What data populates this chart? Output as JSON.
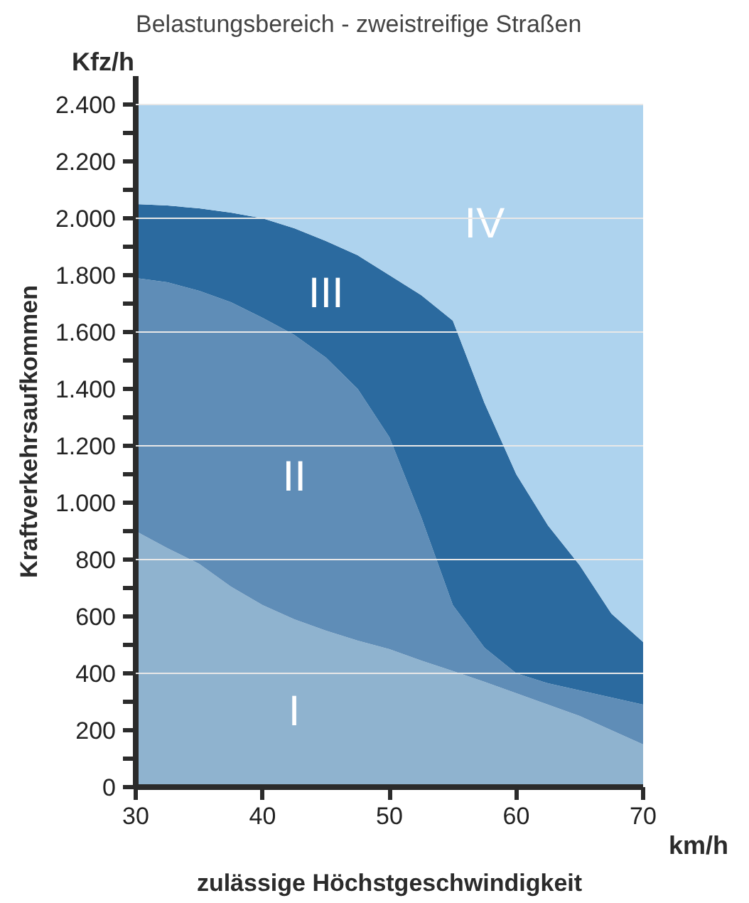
{
  "chart_data": {
    "type": "area",
    "stacked": true,
    "title": "Belastungsbereich - zweistreifige Straßen",
    "xlabel": "zulässige Höchstgeschwindigkeit",
    "ylabel": "Kraftverkehrsaufkommen",
    "annotations": [
      "Kfz/h",
      "km/h"
    ],
    "x": [
      30,
      32.5,
      35,
      37.5,
      40,
      42.5,
      45,
      47.5,
      50,
      52.5,
      55,
      57.5,
      60,
      62.5,
      65,
      67.5,
      70
    ],
    "series": [
      {
        "name": "I",
        "color": "#8fb3cf",
        "values": [
          900,
          840,
          785,
          705,
          640,
          590,
          550,
          515,
          485,
          445,
          408,
          370,
          330,
          290,
          250,
          200,
          150
        ]
      },
      {
        "name": "II",
        "color": "#5f8db7",
        "values": [
          890,
          935,
          960,
          1000,
          1010,
          1000,
          960,
          885,
          745,
          505,
          232,
          120,
          70,
          75,
          90,
          115,
          140
        ]
      },
      {
        "name": "III",
        "color": "#2b6a9f",
        "values": [
          260,
          270,
          290,
          315,
          350,
          375,
          410,
          470,
          570,
          780,
          1000,
          860,
          700,
          555,
          440,
          295,
          220
        ]
      },
      {
        "name": "IV",
        "color": "#aed3ee",
        "values": [
          350,
          355,
          365,
          380,
          400,
          435,
          480,
          530,
          600,
          670,
          760,
          1050,
          1300,
          1480,
          1620,
          1790,
          1890
        ]
      }
    ],
    "xlim": [
      30,
      70
    ],
    "ylim": [
      0,
      2500
    ],
    "xticks": [
      30,
      40,
      50,
      60,
      70
    ],
    "yticks": [
      {
        "value": 0,
        "label": "0"
      },
      {
        "value": 100,
        "label": null
      },
      {
        "value": 200,
        "label": "200"
      },
      {
        "value": 300,
        "label": null
      },
      {
        "value": 400,
        "label": "400"
      },
      {
        "value": 500,
        "label": null
      },
      {
        "value": 600,
        "label": "600"
      },
      {
        "value": 700,
        "label": null
      },
      {
        "value": 800,
        "label": "800"
      },
      {
        "value": 900,
        "label": null
      },
      {
        "value": 1000,
        "label": "1.000"
      },
      {
        "value": 1100,
        "label": null
      },
      {
        "value": 1200,
        "label": "1.200"
      },
      {
        "value": 1300,
        "label": null
      },
      {
        "value": 1400,
        "label": "1.400"
      },
      {
        "value": 1500,
        "label": null
      },
      {
        "value": 1600,
        "label": "1.600"
      },
      {
        "value": 1700,
        "label": null
      },
      {
        "value": 1800,
        "label": "1.800"
      },
      {
        "value": 1900,
        "label": null
      },
      {
        "value": 2000,
        "label": "2.000"
      },
      {
        "value": 2100,
        "label": null
      },
      {
        "value": 2200,
        "label": "2.200"
      },
      {
        "value": 2300,
        "label": null
      },
      {
        "value": 2400,
        "label": "2.400"
      }
    ],
    "ref_lines": [
      {
        "axis": "y",
        "value": 400,
        "color": "#e8e8e8"
      },
      {
        "axis": "y",
        "value": 800,
        "color": "#e8e8e8"
      },
      {
        "axis": "y",
        "value": 1200,
        "color": "#e8e8e8"
      },
      {
        "axis": "y",
        "value": 1600,
        "color": "#e8e8e8"
      },
      {
        "axis": "y",
        "value": 2000,
        "color": "#e8e8e8"
      },
      {
        "axis": "y",
        "value": 2400,
        "color": "#e8e8e8"
      }
    ],
    "grid": false
  }
}
